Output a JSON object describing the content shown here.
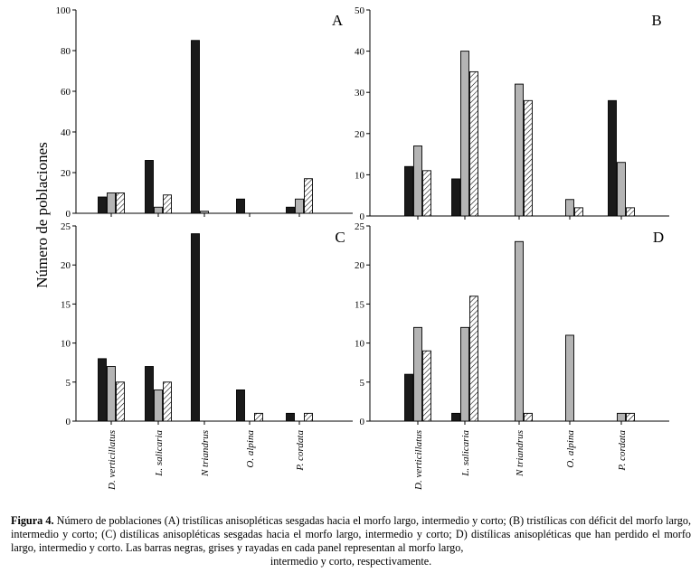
{
  "figure": {
    "ylabel": "Número de poblaciones",
    "categories": [
      "D. verticillatus",
      "L. salicaria",
      "N triandrus",
      "O. alpina",
      "P. cordata"
    ],
    "series_names": [
      "morfo largo",
      "morfo intermedio",
      "morfo corto"
    ],
    "colors": {
      "black": "#1a1a1a",
      "grey": "#b4b4b4",
      "hatch": "#ffffff"
    }
  },
  "chart_data": [
    {
      "panel": "A",
      "type": "bar",
      "categories": [
        "D. verticillatus",
        "L. salicaria",
        "N triandrus",
        "O. alpina",
        "P. cordata"
      ],
      "series": [
        {
          "name": "largo",
          "values": [
            8,
            26,
            85,
            7,
            3
          ]
        },
        {
          "name": "intermedio",
          "values": [
            10,
            3,
            1,
            0,
            7
          ]
        },
        {
          "name": "corto",
          "values": [
            10,
            9,
            0,
            0,
            17
          ]
        }
      ],
      "ylim": [
        0,
        100
      ],
      "yticks": [
        0,
        20,
        40,
        60,
        80,
        100
      ]
    },
    {
      "panel": "B",
      "type": "bar",
      "categories": [
        "D. verticillatus",
        "L. salicaria",
        "N triandrus",
        "O. alpina",
        "P. cordata"
      ],
      "series": [
        {
          "name": "largo",
          "values": [
            12,
            9,
            0,
            0,
            28
          ]
        },
        {
          "name": "intermedio",
          "values": [
            17,
            40,
            32,
            4,
            13
          ]
        },
        {
          "name": "corto",
          "values": [
            11,
            35,
            28,
            2,
            2
          ]
        }
      ],
      "ylim": [
        0,
        50
      ],
      "yticks": [
        0,
        10,
        20,
        30,
        40,
        50
      ]
    },
    {
      "panel": "C",
      "type": "bar",
      "categories": [
        "D. verticillatus",
        "L. salicaria",
        "N triandrus",
        "O. alpina",
        "P. cordata"
      ],
      "series": [
        {
          "name": "largo",
          "values": [
            8,
            7,
            24,
            4,
            1
          ]
        },
        {
          "name": "intermedio",
          "values": [
            7,
            4,
            0,
            0,
            0
          ]
        },
        {
          "name": "corto",
          "values": [
            5,
            5,
            0,
            1,
            1
          ]
        }
      ],
      "ylim": [
        0,
        25
      ],
      "yticks": [
        0,
        5,
        10,
        15,
        20,
        25
      ]
    },
    {
      "panel": "D",
      "type": "bar",
      "categories": [
        "D. verticillatus",
        "L. salicaria",
        "N triandrus",
        "O. alpina",
        "P. cordata"
      ],
      "series": [
        {
          "name": "largo",
          "values": [
            6,
            1,
            0,
            0,
            0
          ]
        },
        {
          "name": "intermedio",
          "values": [
            12,
            12,
            23,
            11,
            1
          ]
        },
        {
          "name": "corto",
          "values": [
            9,
            16,
            1,
            0,
            1
          ]
        }
      ],
      "ylim": [
        0,
        25
      ],
      "yticks": [
        0,
        5,
        10,
        15,
        20,
        25
      ]
    }
  ],
  "caption": {
    "label": "Figura 4.",
    "text": " Número de poblaciones (A) tristílicas anisopléticas sesgadas hacia el morfo largo, intermedio y corto; (B) tristílicas con déficit del morfo largo, intermedio y corto; (C) distílicas anisopléticas sesgadas hacia el morfo largo, intermedio y corto; D) distílicas anisopléticas que han perdido el morfo largo, intermedio y corto. Las barras negras, grises y rayadas en cada panel representan al morfo largo,",
    "last_line": "intermedio y corto, respectivamente."
  }
}
